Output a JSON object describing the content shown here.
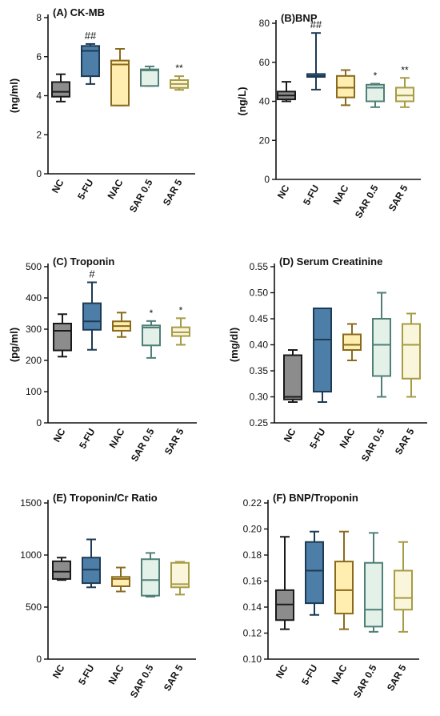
{
  "categories": [
    "NC",
    "5-FU",
    "NAC",
    "SAR 0.5",
    "SAR 5"
  ],
  "colors": {
    "NC": {
      "fill": "#8c8c8c",
      "stroke": "#1a1a1a"
    },
    "5-FU": {
      "fill": "#4d7ea8",
      "stroke": "#1d3b55"
    },
    "NAC": {
      "fill": "#ffeeb0",
      "stroke": "#8a6a1c"
    },
    "SAR 0.5": {
      "fill": "#e3f1e8",
      "stroke": "#4f7f77"
    },
    "SAR 5": {
      "fill": "#faf6dc",
      "stroke": "#a79b45"
    }
  },
  "chart_data": [
    {
      "type": "box",
      "title": "(A) CK-MB",
      "ylabel": "(ng/ml)",
      "ylim": [
        0,
        8
      ],
      "yticks": [
        0,
        2,
        4,
        6,
        8
      ],
      "categories": [
        "NC",
        "5-FU",
        "NAC",
        "SAR 0.5",
        "SAR 5"
      ],
      "boxes": [
        {
          "min": 3.7,
          "q1": 3.95,
          "median": 4.2,
          "q3": 4.7,
          "max": 5.1
        },
        {
          "min": 4.6,
          "q1": 5.0,
          "median": 6.3,
          "q3": 6.55,
          "max": 6.65
        },
        {
          "min": 3.5,
          "q1": 3.5,
          "median": 5.6,
          "q3": 5.8,
          "max": 6.4
        },
        {
          "min": 4.5,
          "q1": 4.5,
          "median": 5.3,
          "q3": 5.35,
          "max": 5.5
        },
        {
          "min": 4.3,
          "q1": 4.4,
          "median": 4.6,
          "q3": 4.8,
          "max": 5.0
        }
      ],
      "annotations": [
        "",
        "##",
        "",
        "",
        "**"
      ]
    },
    {
      "type": "box",
      "title": "(B)BNP",
      "ylabel": "(ng/L)",
      "ylim": [
        0,
        80
      ],
      "yticks": [
        0,
        20,
        40,
        60,
        80
      ],
      "categories": [
        "NC",
        "5-FU",
        "NAC",
        "SAR 0.5",
        "SAR 5"
      ],
      "boxes": [
        {
          "min": 40,
          "q1": 41,
          "median": 43,
          "q3": 45,
          "max": 50
        },
        {
          "min": 46,
          "q1": 52.5,
          "median": 53,
          "q3": 54,
          "max": 75
        },
        {
          "min": 38,
          "q1": 42,
          "median": 47,
          "q3": 53,
          "max": 56
        },
        {
          "min": 37,
          "q1": 40,
          "median": 47,
          "q3": 48.5,
          "max": 49
        },
        {
          "min": 37,
          "q1": 40,
          "median": 43,
          "q3": 47,
          "max": 52
        }
      ],
      "annotations": [
        "",
        "##",
        "",
        "*",
        "**"
      ]
    },
    {
      "type": "box",
      "title": "(C) Troponin",
      "ylabel": "(pg/ml)",
      "ylim": [
        0,
        500
      ],
      "yticks": [
        0,
        100,
        200,
        300,
        400,
        500
      ],
      "categories": [
        "NC",
        "5-FU",
        "NAC",
        "SAR 0.5",
        "SAR 5"
      ],
      "boxes": [
        {
          "min": 212,
          "q1": 232,
          "median": 295,
          "q3": 318,
          "max": 348
        },
        {
          "min": 234,
          "q1": 298,
          "median": 325,
          "q3": 383,
          "max": 450
        },
        {
          "min": 275,
          "q1": 295,
          "median": 310,
          "q3": 325,
          "max": 353
        },
        {
          "min": 208,
          "q1": 248,
          "median": 305,
          "q3": 312,
          "max": 326
        },
        {
          "min": 250,
          "q1": 278,
          "median": 290,
          "q3": 306,
          "max": 335
        }
      ],
      "annotations": [
        "",
        "#",
        "",
        "*",
        "*"
      ]
    },
    {
      "type": "box",
      "title": "(D) Serum Creatinine",
      "ylabel": "(mg/dl)",
      "ylim": [
        0.25,
        0.55
      ],
      "yticks": [
        0.25,
        0.3,
        0.35,
        0.4,
        0.45,
        0.5,
        0.55
      ],
      "categories": [
        "NC",
        "5-FU",
        "NAC",
        "SAR 0.5",
        "SAR 5"
      ],
      "boxes": [
        {
          "min": 0.29,
          "q1": 0.295,
          "median": 0.3,
          "q3": 0.38,
          "max": 0.39
        },
        {
          "min": 0.29,
          "q1": 0.31,
          "median": 0.41,
          "q3": 0.47,
          "max": 0.47
        },
        {
          "min": 0.37,
          "q1": 0.39,
          "median": 0.4,
          "q3": 0.42,
          "max": 0.44
        },
        {
          "min": 0.3,
          "q1": 0.34,
          "median": 0.4,
          "q3": 0.45,
          "max": 0.5
        },
        {
          "min": 0.3,
          "q1": 0.335,
          "median": 0.4,
          "q3": 0.44,
          "max": 0.46
        }
      ],
      "annotations": [
        "",
        "",
        "",
        "",
        ""
      ]
    },
    {
      "type": "box",
      "title": "(E) Troponin/Cr Ratio",
      "ylabel": "",
      "ylim": [
        0,
        1500
      ],
      "yticks": [
        0,
        500,
        1000,
        1500
      ],
      "categories": [
        "NC",
        "5-FU",
        "NAC",
        "SAR 0.5",
        "SAR 5"
      ],
      "boxes": [
        {
          "min": 760,
          "q1": 770,
          "median": 840,
          "q3": 940,
          "max": 975
        },
        {
          "min": 690,
          "q1": 730,
          "median": 860,
          "q3": 975,
          "max": 1150
        },
        {
          "min": 650,
          "q1": 700,
          "median": 770,
          "q3": 790,
          "max": 880
        },
        {
          "min": 600,
          "q1": 610,
          "median": 760,
          "q3": 960,
          "max": 1020
        },
        {
          "min": 620,
          "q1": 690,
          "median": 720,
          "q3": 925,
          "max": 935
        }
      ],
      "annotations": [
        "",
        "",
        "",
        "",
        ""
      ]
    },
    {
      "type": "box",
      "title": "(F) BNP/Troponin",
      "ylabel": "",
      "ylim": [
        0.1,
        0.22
      ],
      "yticks": [
        0.1,
        0.12,
        0.14,
        0.16,
        0.18,
        0.2,
        0.22
      ],
      "categories": [
        "NC",
        "5-FU",
        "NAC",
        "SAR 0.5",
        "SAR 5"
      ],
      "boxes": [
        {
          "min": 0.123,
          "q1": 0.13,
          "median": 0.142,
          "q3": 0.153,
          "max": 0.194
        },
        {
          "min": 0.134,
          "q1": 0.143,
          "median": 0.168,
          "q3": 0.19,
          "max": 0.198
        },
        {
          "min": 0.123,
          "q1": 0.135,
          "median": 0.153,
          "q3": 0.175,
          "max": 0.198
        },
        {
          "min": 0.121,
          "q1": 0.125,
          "median": 0.138,
          "q3": 0.174,
          "max": 0.197
        },
        {
          "min": 0.121,
          "q1": 0.138,
          "median": 0.147,
          "q3": 0.168,
          "max": 0.19
        }
      ],
      "annotations": [
        "",
        "",
        "",
        "",
        ""
      ]
    }
  ]
}
